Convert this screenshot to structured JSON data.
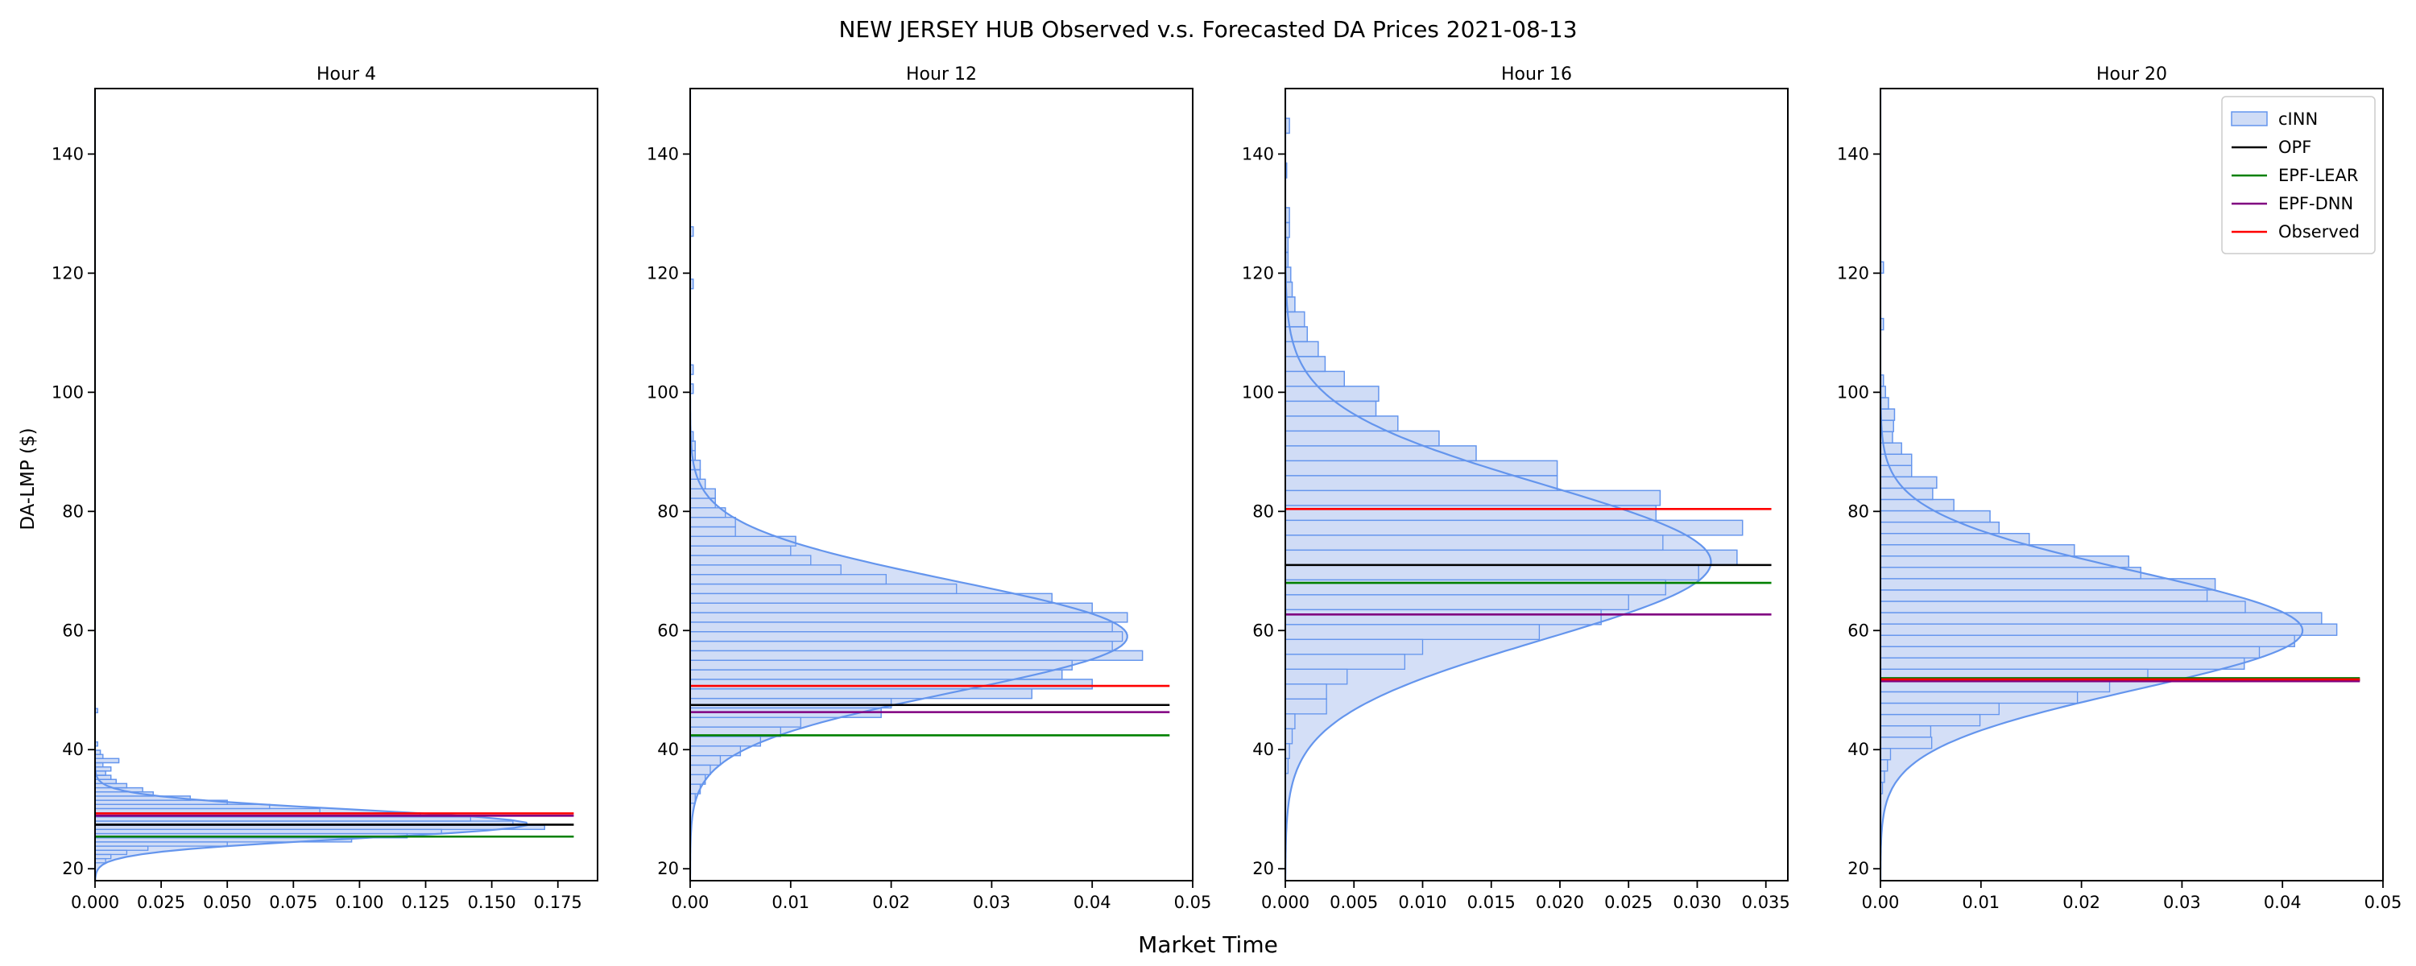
{
  "title": "NEW JERSEY HUB Observed v.s. Forecasted DA Prices 2021-08-13",
  "xlabel": "Market Time",
  "ylabel": "DA-LMP ($)",
  "colors": {
    "cinn": "#6495ed",
    "cinn_fill": "#cfdcf6",
    "opf": "#000000",
    "epf_lear": "#008000",
    "epf_dnn": "#800080",
    "observed": "#ff0000"
  },
  "legend": [
    {
      "key": "cinn",
      "label": "cINN",
      "kind": "patch"
    },
    {
      "key": "opf",
      "label": "OPF",
      "kind": "line"
    },
    {
      "key": "epf_lear",
      "label": "EPF-LEAR",
      "kind": "line"
    },
    {
      "key": "epf_dnn",
      "label": "EPF-DNN",
      "kind": "line"
    },
    {
      "key": "observed",
      "label": "Observed",
      "kind": "line"
    }
  ],
  "legend_location": "upper right",
  "chart_data": [
    {
      "type": "histogram",
      "title": "Hour 4",
      "orientation": "horizontal",
      "ylim": [
        18,
        151
      ],
      "yticks": [
        20,
        40,
        60,
        80,
        100,
        120,
        140
      ],
      "xlim": [
        0,
        0.19
      ],
      "xticks": [
        "0.000",
        "0.025",
        "0.050",
        "0.075",
        "0.100",
        "0.125",
        "0.150",
        "0.175"
      ],
      "line_xmax": 0.181,
      "bin_width": 0.7,
      "bins": [
        {
          "y": 21.0,
          "x": 0.004
        },
        {
          "y": 21.7,
          "x": 0.006
        },
        {
          "y": 22.4,
          "x": 0.012
        },
        {
          "y": 23.1,
          "x": 0.02
        },
        {
          "y": 23.8,
          "x": 0.05
        },
        {
          "y": 24.5,
          "x": 0.097
        },
        {
          "y": 25.2,
          "x": 0.118
        },
        {
          "y": 25.9,
          "x": 0.131
        },
        {
          "y": 26.6,
          "x": 0.17
        },
        {
          "y": 27.3,
          "x": 0.158
        },
        {
          "y": 28.0,
          "x": 0.142
        },
        {
          "y": 28.7,
          "x": 0.123
        },
        {
          "y": 29.4,
          "x": 0.085
        },
        {
          "y": 30.1,
          "x": 0.066
        },
        {
          "y": 30.8,
          "x": 0.05
        },
        {
          "y": 31.5,
          "x": 0.036
        },
        {
          "y": 32.2,
          "x": 0.022
        },
        {
          "y": 32.9,
          "x": 0.018
        },
        {
          "y": 33.6,
          "x": 0.012
        },
        {
          "y": 34.3,
          "x": 0.008
        },
        {
          "y": 35.0,
          "x": 0.006
        },
        {
          "y": 35.7,
          "x": 0.004
        },
        {
          "y": 36.4,
          "x": 0.006
        },
        {
          "y": 37.1,
          "x": 0.003
        },
        {
          "y": 37.8,
          "x": 0.009
        },
        {
          "y": 38.5,
          "x": 0.003
        },
        {
          "y": 39.2,
          "x": 0.002
        },
        {
          "y": 40.6,
          "x": 0.001
        },
        {
          "y": 46.2,
          "x": 0.001
        }
      ],
      "kde": {
        "mean": 27.5,
        "sd": 2.4,
        "peak": 0.164
      },
      "lines": {
        "opf": 27.4,
        "epf_lear": 25.4,
        "epf_dnn": 28.9,
        "observed": 29.3
      },
      "show_ylabel": true,
      "show_legend": false
    },
    {
      "type": "histogram",
      "title": "Hour 12",
      "orientation": "horizontal",
      "ylim": [
        18,
        151
      ],
      "yticks": [
        20,
        40,
        60,
        80,
        100,
        120,
        140
      ],
      "xlim": [
        0,
        0.05
      ],
      "xticks": [
        "0.00",
        "0.01",
        "0.02",
        "0.03",
        "0.04",
        "0.05"
      ],
      "line_xmax": 0.0477,
      "bin_width": 1.6,
      "bins": [
        {
          "y": 31.0,
          "x": 0.0005
        },
        {
          "y": 32.6,
          "x": 0.001
        },
        {
          "y": 34.2,
          "x": 0.0015
        },
        {
          "y": 35.8,
          "x": 0.002
        },
        {
          "y": 37.4,
          "x": 0.003
        },
        {
          "y": 39.0,
          "x": 0.005
        },
        {
          "y": 40.6,
          "x": 0.007
        },
        {
          "y": 42.2,
          "x": 0.009
        },
        {
          "y": 43.8,
          "x": 0.011
        },
        {
          "y": 45.4,
          "x": 0.019
        },
        {
          "y": 47.0,
          "x": 0.02
        },
        {
          "y": 48.6,
          "x": 0.034
        },
        {
          "y": 50.2,
          "x": 0.04
        },
        {
          "y": 51.8,
          "x": 0.037
        },
        {
          "y": 53.4,
          "x": 0.038
        },
        {
          "y": 55.0,
          "x": 0.045
        },
        {
          "y": 56.6,
          "x": 0.042
        },
        {
          "y": 58.2,
          "x": 0.043
        },
        {
          "y": 59.8,
          "x": 0.042
        },
        {
          "y": 61.4,
          "x": 0.0435
        },
        {
          "y": 63.0,
          "x": 0.04
        },
        {
          "y": 64.6,
          "x": 0.036
        },
        {
          "y": 66.2,
          "x": 0.0265
        },
        {
          "y": 67.8,
          "x": 0.0195
        },
        {
          "y": 69.4,
          "x": 0.015
        },
        {
          "y": 71.0,
          "x": 0.012
        },
        {
          "y": 72.6,
          "x": 0.01
        },
        {
          "y": 74.2,
          "x": 0.0105
        },
        {
          "y": 75.8,
          "x": 0.0045
        },
        {
          "y": 77.4,
          "x": 0.0045
        },
        {
          "y": 79.0,
          "x": 0.0035
        },
        {
          "y": 80.6,
          "x": 0.0025
        },
        {
          "y": 82.2,
          "x": 0.0025
        },
        {
          "y": 83.8,
          "x": 0.0015
        },
        {
          "y": 85.4,
          "x": 0.001
        },
        {
          "y": 87.0,
          "x": 0.001
        },
        {
          "y": 88.6,
          "x": 0.0005
        },
        {
          "y": 90.2,
          "x": 0.0005
        },
        {
          "y": 91.8,
          "x": 0.0003
        },
        {
          "y": 99.8,
          "x": 0.0003
        },
        {
          "y": 103.0,
          "x": 0.0003
        },
        {
          "y": 117.4,
          "x": 0.0003
        },
        {
          "y": 126.2,
          "x": 0.0003
        }
      ],
      "kde": {
        "mean": 59.0,
        "sd": 9.3,
        "peak": 0.0435
      },
      "lines": {
        "opf": 47.5,
        "epf_lear": 42.4,
        "epf_dnn": 46.3,
        "observed": 50.7
      },
      "show_ylabel": false,
      "show_legend": false
    },
    {
      "type": "histogram",
      "title": "Hour 16",
      "orientation": "horizontal",
      "ylim": [
        18,
        151
      ],
      "yticks": [
        20,
        40,
        60,
        80,
        100,
        120,
        140
      ],
      "xlim": [
        0,
        0.0366
      ],
      "xticks": [
        "0.000",
        "0.005",
        "0.010",
        "0.015",
        "0.020",
        "0.025",
        "0.030",
        "0.035"
      ],
      "line_xmax": 0.0354,
      "bin_width": 2.5,
      "bins": [
        {
          "y": 36.0,
          "x": 0.0002
        },
        {
          "y": 38.5,
          "x": 0.0003
        },
        {
          "y": 41.0,
          "x": 0.0005
        },
        {
          "y": 43.5,
          "x": 0.0007
        },
        {
          "y": 46.0,
          "x": 0.003
        },
        {
          "y": 48.5,
          "x": 0.003
        },
        {
          "y": 51.0,
          "x": 0.0045
        },
        {
          "y": 53.5,
          "x": 0.0087
        },
        {
          "y": 56.0,
          "x": 0.01
        },
        {
          "y": 58.5,
          "x": 0.0185
        },
        {
          "y": 61.0,
          "x": 0.023
        },
        {
          "y": 63.5,
          "x": 0.025
        },
        {
          "y": 66.0,
          "x": 0.0277
        },
        {
          "y": 68.5,
          "x": 0.0301
        },
        {
          "y": 71.0,
          "x": 0.0329
        },
        {
          "y": 73.5,
          "x": 0.0275
        },
        {
          "y": 76.0,
          "x": 0.0333
        },
        {
          "y": 78.5,
          "x": 0.027
        },
        {
          "y": 81.0,
          "x": 0.0273
        },
        {
          "y": 83.5,
          "x": 0.0198
        },
        {
          "y": 86.0,
          "x": 0.0198
        },
        {
          "y": 88.5,
          "x": 0.0139
        },
        {
          "y": 91.0,
          "x": 0.0112
        },
        {
          "y": 93.5,
          "x": 0.0082
        },
        {
          "y": 96.0,
          "x": 0.0066
        },
        {
          "y": 98.5,
          "x": 0.0068
        },
        {
          "y": 101.0,
          "x": 0.0043
        },
        {
          "y": 103.5,
          "x": 0.0029
        },
        {
          "y": 106.0,
          "x": 0.0024
        },
        {
          "y": 108.5,
          "x": 0.0016
        },
        {
          "y": 111.0,
          "x": 0.0014
        },
        {
          "y": 113.5,
          "x": 0.0007
        },
        {
          "y": 116.0,
          "x": 0.0005
        },
        {
          "y": 118.5,
          "x": 0.0004
        },
        {
          "y": 121.0,
          "x": 0.0002
        },
        {
          "y": 123.5,
          "x": 0.0002
        },
        {
          "y": 126.0,
          "x": 0.0003
        },
        {
          "y": 128.5,
          "x": 0.0003
        },
        {
          "y": 136.0,
          "x": 0.0001
        },
        {
          "y": 143.5,
          "x": 0.0003
        }
      ],
      "kde": {
        "mean": 71.5,
        "sd": 13.0,
        "peak": 0.031
      },
      "lines": {
        "opf": 71.0,
        "epf_lear": 68.0,
        "epf_dnn": 62.7,
        "observed": 80.4
      },
      "show_ylabel": false,
      "show_legend": false
    },
    {
      "type": "histogram",
      "title": "Hour 20",
      "orientation": "horizontal",
      "ylim": [
        18,
        151
      ],
      "yticks": [
        20,
        40,
        60,
        80,
        100,
        120,
        140
      ],
      "xlim": [
        0,
        0.05
      ],
      "xticks": [
        "0.00",
        "0.01",
        "0.02",
        "0.03",
        "0.04",
        "0.05"
      ],
      "line_xmax": 0.0477,
      "bin_width": 1.9,
      "bins": [
        {
          "y": 32.6,
          "x": 0.0002
        },
        {
          "y": 34.5,
          "x": 0.0004
        },
        {
          "y": 36.4,
          "x": 0.0007
        },
        {
          "y": 38.3,
          "x": 0.001
        },
        {
          "y": 40.2,
          "x": 0.0051
        },
        {
          "y": 42.1,
          "x": 0.005
        },
        {
          "y": 44.0,
          "x": 0.0099
        },
        {
          "y": 45.9,
          "x": 0.0118
        },
        {
          "y": 47.8,
          "x": 0.0196
        },
        {
          "y": 49.7,
          "x": 0.0228
        },
        {
          "y": 51.6,
          "x": 0.0266
        },
        {
          "y": 53.5,
          "x": 0.0362
        },
        {
          "y": 55.4,
          "x": 0.0377
        },
        {
          "y": 57.3,
          "x": 0.0412
        },
        {
          "y": 59.2,
          "x": 0.0454
        },
        {
          "y": 61.1,
          "x": 0.0439
        },
        {
          "y": 63.0,
          "x": 0.0363
        },
        {
          "y": 64.9,
          "x": 0.0325
        },
        {
          "y": 66.8,
          "x": 0.0333
        },
        {
          "y": 68.7,
          "x": 0.0259
        },
        {
          "y": 70.6,
          "x": 0.0247
        },
        {
          "y": 72.5,
          "x": 0.0193
        },
        {
          "y": 74.4,
          "x": 0.0148
        },
        {
          "y": 76.3,
          "x": 0.0118
        },
        {
          "y": 78.2,
          "x": 0.0109
        },
        {
          "y": 80.1,
          "x": 0.0073
        },
        {
          "y": 82.0,
          "x": 0.0052
        },
        {
          "y": 83.9,
          "x": 0.0056
        },
        {
          "y": 85.8,
          "x": 0.0031
        },
        {
          "y": 87.7,
          "x": 0.0031
        },
        {
          "y": 89.6,
          "x": 0.0021
        },
        {
          "y": 91.5,
          "x": 0.0012
        },
        {
          "y": 93.4,
          "x": 0.0013
        },
        {
          "y": 95.3,
          "x": 0.0014
        },
        {
          "y": 97.2,
          "x": 0.0008
        },
        {
          "y": 99.1,
          "x": 0.0005
        },
        {
          "y": 101.0,
          "x": 0.0003
        },
        {
          "y": 110.5,
          "x": 0.0003
        },
        {
          "y": 120.0,
          "x": 0.0003
        }
      ],
      "kde": {
        "mean": 60.0,
        "sd": 9.9,
        "peak": 0.042
      },
      "lines": {
        "opf": 51.7,
        "epf_lear": 52.0,
        "epf_dnn": 51.5,
        "observed": 51.8
      },
      "show_ylabel": false,
      "show_legend": true
    }
  ]
}
